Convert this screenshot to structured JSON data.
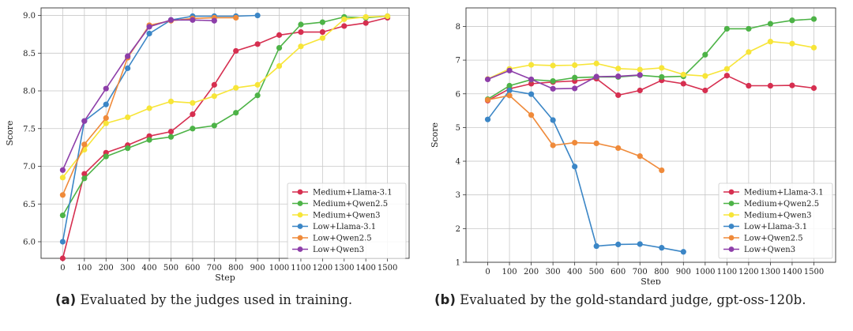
{
  "chart_data": [
    {
      "id": "a",
      "type": "line",
      "title": "",
      "xlabel": "Step",
      "ylabel": "Score",
      "ylim": [
        5.78,
        9.1
      ],
      "xlim": [
        -100,
        1600
      ],
      "x_ticks": [
        0,
        100,
        200,
        300,
        400,
        500,
        600,
        700,
        800,
        900,
        1000,
        1100,
        1200,
        1300,
        1400,
        1500
      ],
      "y_ticks": [
        6.0,
        6.5,
        7.0,
        7.5,
        8.0,
        8.5,
        9.0
      ],
      "y_tick_labels": [
        "6.0",
        "6.5",
        "7.0",
        "7.5",
        "8.0",
        "8.5",
        "9.0"
      ],
      "grid": true,
      "legend": "lower-right",
      "series": [
        {
          "name": "Medium+Llama-3.1",
          "color": "#d62f50",
          "x": [
            0,
            100,
            200,
            300,
            400,
            500,
            600,
            700,
            800,
            900,
            1000,
            1100,
            1200,
            1300,
            1400,
            1500
          ],
          "values": [
            5.78,
            6.9,
            7.18,
            7.28,
            7.4,
            7.46,
            7.69,
            8.08,
            8.53,
            8.62,
            8.74,
            8.78,
            8.78,
            8.86,
            8.9,
            8.97
          ]
        },
        {
          "name": "Medium+Qwen2.5",
          "color": "#4db347",
          "x": [
            0,
            100,
            200,
            300,
            400,
            500,
            600,
            700,
            800,
            900,
            1000,
            1100,
            1200,
            1300,
            1400,
            1500
          ],
          "values": [
            6.35,
            6.84,
            7.13,
            7.24,
            7.35,
            7.39,
            7.5,
            7.54,
            7.71,
            7.94,
            8.57,
            8.88,
            8.91,
            8.98,
            8.97,
            8.99
          ]
        },
        {
          "name": "Medium+Qwen3",
          "color": "#f7e538",
          "x": [
            0,
            100,
            200,
            300,
            400,
            500,
            600,
            700,
            800,
            900,
            1000,
            1100,
            1200,
            1300,
            1400,
            1500
          ],
          "values": [
            6.85,
            7.22,
            7.57,
            7.65,
            7.77,
            7.86,
            7.84,
            7.93,
            8.04,
            8.08,
            8.33,
            8.59,
            8.7,
            8.95,
            8.98,
            8.99
          ]
        },
        {
          "name": "Low+Llama-3.1",
          "color": "#3b86c6",
          "x": [
            0,
            100,
            200,
            300,
            400,
            500,
            600,
            700,
            800,
            900
          ],
          "values": [
            6.0,
            7.6,
            7.82,
            8.3,
            8.76,
            8.94,
            8.99,
            8.99,
            8.99,
            9.0
          ]
        },
        {
          "name": "Low+Qwen2.5",
          "color": "#ef8a3a",
          "x": [
            0,
            100,
            200,
            300,
            400,
            500,
            600,
            700,
            800
          ],
          "values": [
            6.62,
            7.29,
            7.64,
            8.44,
            8.87,
            8.93,
            8.96,
            8.97,
            8.97
          ]
        },
        {
          "name": "Low+Qwen3",
          "color": "#8d3ea9",
          "x": [
            0,
            100,
            200,
            300,
            400,
            500,
            600,
            700
          ],
          "values": [
            6.95,
            7.6,
            8.03,
            8.46,
            8.85,
            8.94,
            8.94,
            8.93
          ]
        }
      ]
    },
    {
      "id": "b",
      "type": "line",
      "title": "",
      "xlabel": "Step",
      "ylabel": "Score",
      "ylim": [
        1.0,
        8.55
      ],
      "xlim": [
        -100,
        1600
      ],
      "x_ticks": [
        0,
        100,
        200,
        300,
        400,
        500,
        600,
        700,
        800,
        900,
        1000,
        1100,
        1200,
        1300,
        1400,
        1500
      ],
      "y_ticks": [
        1,
        2,
        3,
        4,
        5,
        6,
        7,
        8
      ],
      "y_tick_labels": [
        "1",
        "2",
        "3",
        "4",
        "5",
        "6",
        "7",
        "8"
      ],
      "grid": true,
      "legend": "lower-right",
      "series": [
        {
          "name": "Medium+Llama-3.1",
          "color": "#d62f50",
          "x": [
            0,
            100,
            200,
            300,
            400,
            500,
            600,
            700,
            800,
            900,
            1000,
            1100,
            1200,
            1300,
            1400,
            1500
          ],
          "values": [
            5.8,
            6.15,
            6.3,
            6.35,
            6.38,
            6.45,
            5.96,
            6.1,
            6.4,
            6.3,
            6.1,
            6.54,
            6.24,
            6.24,
            6.25,
            6.17
          ]
        },
        {
          "name": "Medium+Qwen2.5",
          "color": "#4db347",
          "x": [
            0,
            100,
            200,
            300,
            400,
            500,
            600,
            700,
            800,
            900,
            1000,
            1100,
            1200,
            1300,
            1400,
            1500
          ],
          "values": [
            5.84,
            6.24,
            6.42,
            6.38,
            6.48,
            6.5,
            6.5,
            6.55,
            6.5,
            6.52,
            7.16,
            7.93,
            7.93,
            8.08,
            8.18,
            8.22
          ]
        },
        {
          "name": "Medium+Qwen3",
          "color": "#f7e538",
          "x": [
            0,
            100,
            200,
            300,
            400,
            500,
            600,
            700,
            800,
            900,
            1000,
            1100,
            1200,
            1300,
            1400,
            1500
          ],
          "values": [
            6.44,
            6.74,
            6.86,
            6.84,
            6.85,
            6.9,
            6.75,
            6.72,
            6.77,
            6.57,
            6.53,
            6.74,
            7.24,
            7.55,
            7.49,
            7.37
          ]
        },
        {
          "name": "Low+Llama-3.1",
          "color": "#3b86c6",
          "x": [
            0,
            100,
            200,
            300,
            400,
            500,
            600,
            700,
            800,
            900
          ],
          "values": [
            5.24,
            6.1,
            5.99,
            5.22,
            3.84,
            1.48,
            1.53,
            1.54,
            1.43,
            1.31
          ]
        },
        {
          "name": "Low+Qwen2.5",
          "color": "#ef8a3a",
          "x": [
            0,
            100,
            200,
            300,
            400,
            500,
            600,
            700,
            800
          ],
          "values": [
            5.82,
            5.95,
            5.37,
            4.47,
            4.55,
            4.53,
            4.39,
            4.15,
            3.73
          ]
        },
        {
          "name": "Low+Qwen3",
          "color": "#8d3ea9",
          "x": [
            0,
            100,
            200,
            300,
            400,
            500,
            600,
            700
          ],
          "values": [
            6.43,
            6.69,
            6.43,
            6.15,
            6.16,
            6.51,
            6.52,
            6.56
          ]
        }
      ]
    }
  ],
  "captions": {
    "a": {
      "tag": "(a)",
      "text": "Evaluated by the judges used in training."
    },
    "b": {
      "tag": "(b)",
      "text": "Evaluated by the gold-standard judge, gpt-oss-120b."
    }
  }
}
